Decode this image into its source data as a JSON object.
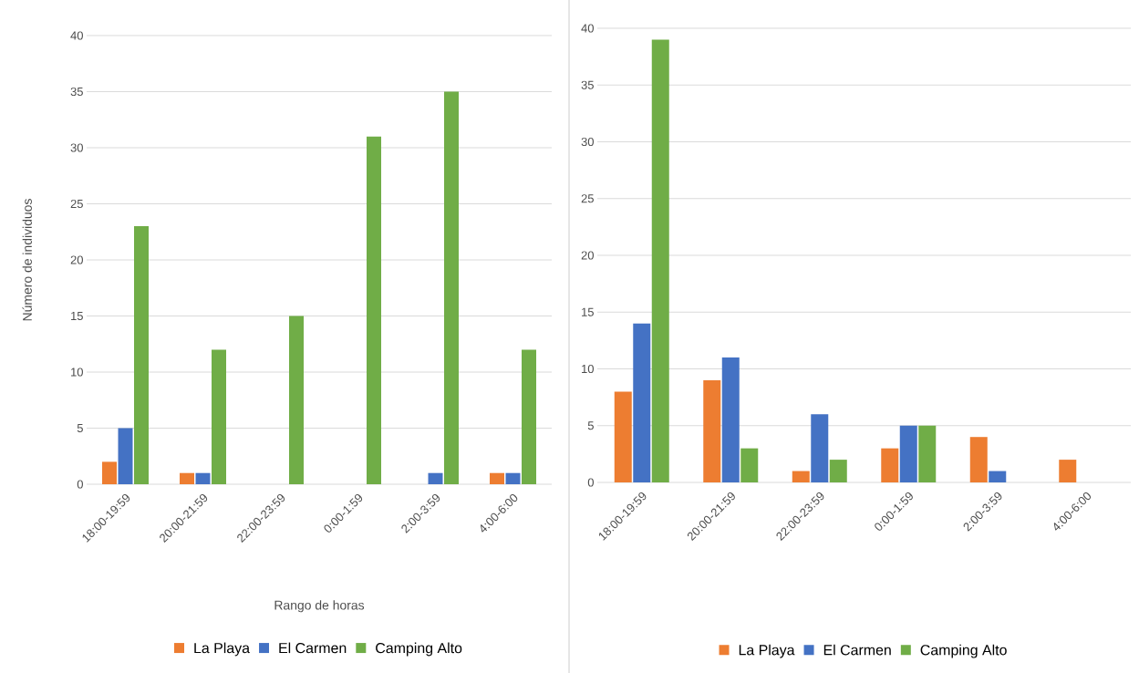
{
  "chart_data": [
    {
      "type": "bar",
      "xlabel": "Rango de horas",
      "ylabel": "Número de individuos",
      "categories": [
        "18:00-19:59",
        "20:00-21:59",
        "22:00-23:59",
        "0:00-1:59",
        "2:00-3:59",
        "4:00-6:00"
      ],
      "series": [
        {
          "name": "La Playa",
          "color": "#ed7d31",
          "values": [
            2,
            1,
            0,
            0,
            0,
            1
          ]
        },
        {
          "name": "El Carmen",
          "color": "#4472c4",
          "values": [
            5,
            1,
            0,
            0,
            1,
            1
          ]
        },
        {
          "name": "Camping Alto",
          "color": "#70ad47",
          "values": [
            23,
            12,
            15,
            31,
            35,
            12
          ]
        }
      ],
      "ylim": [
        0,
        40
      ],
      "yticks": [
        0,
        5,
        10,
        15,
        20,
        25,
        30,
        35,
        40
      ],
      "grid": "y",
      "legend": "bottom"
    },
    {
      "type": "bar",
      "categories": [
        "18:00-19:59",
        "20:00-21:59",
        "22:00-23:59",
        "0:00-1:59",
        "2:00-3:59",
        "4:00-6:00"
      ],
      "series": [
        {
          "name": "La Playa",
          "color": "#ed7d31",
          "values": [
            8,
            9,
            1,
            3,
            4,
            2
          ]
        },
        {
          "name": "El Carmen",
          "color": "#4472c4",
          "values": [
            14,
            11,
            6,
            5,
            1,
            0
          ]
        },
        {
          "name": "Camping Alto",
          "color": "#70ad47",
          "values": [
            39,
            3,
            2,
            5,
            0,
            0
          ]
        }
      ],
      "ylim": [
        0,
        40
      ],
      "yticks": [
        0,
        5,
        10,
        15,
        20,
        25,
        30,
        35,
        40
      ],
      "grid": "y",
      "legend": "bottom"
    }
  ]
}
